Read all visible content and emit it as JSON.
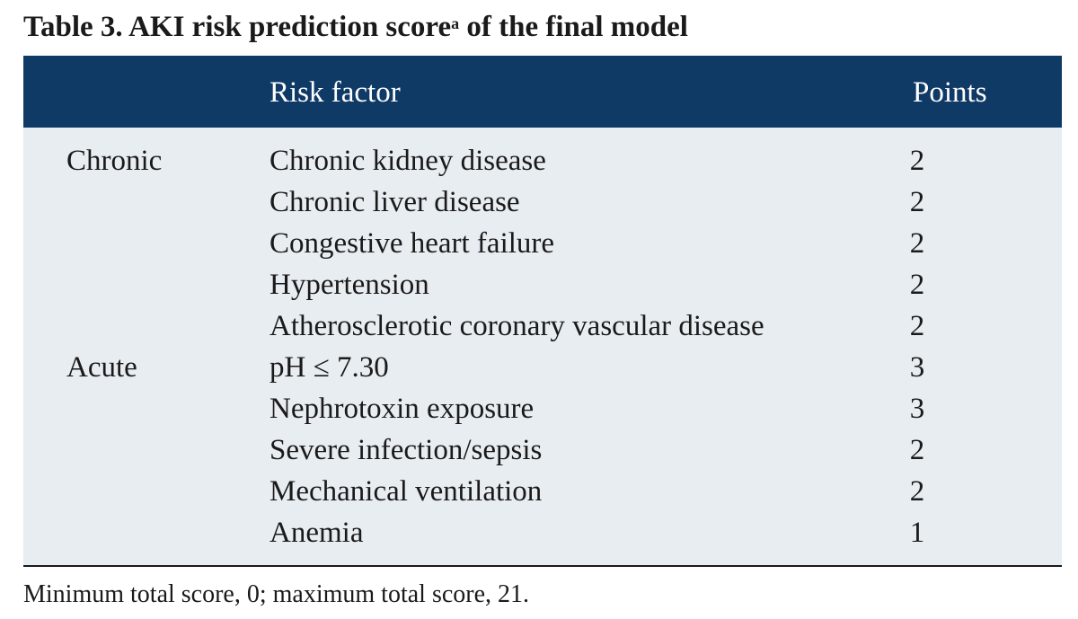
{
  "caption": {
    "label": "Table 3.",
    "title": "AKI risk prediction score",
    "superscript": "a",
    "title_suffix": "of the final model"
  },
  "table": {
    "headers": {
      "category": "",
      "risk_factor": "Risk factor",
      "points": "Points"
    },
    "rows": [
      {
        "category": "Chronic",
        "factor": "Chronic kidney disease",
        "points": "2"
      },
      {
        "category": "",
        "factor": "Chronic liver disease",
        "points": "2"
      },
      {
        "category": "",
        "factor": "Congestive heart failure",
        "points": "2"
      },
      {
        "category": "",
        "factor": "Hypertension",
        "points": "2"
      },
      {
        "category": "",
        "factor": "Atherosclerotic coronary vascular disease",
        "points": "2"
      },
      {
        "category": "Acute",
        "factor": "pH ≤ 7.30",
        "points": "3"
      },
      {
        "category": "",
        "factor": "Nephrotoxin exposure",
        "points": "3"
      },
      {
        "category": "",
        "factor": "Severe infection/sepsis",
        "points": "2"
      },
      {
        "category": "",
        "factor": "Mechanical ventilation",
        "points": "2"
      },
      {
        "category": "",
        "factor": "Anemia",
        "points": "1"
      }
    ]
  },
  "footnote": "Minimum total score, 0; maximum total score, 21.",
  "colors": {
    "header_bg": "#0f3a66",
    "body_bg": "#e8edf2",
    "text": "#1a1a1a"
  }
}
